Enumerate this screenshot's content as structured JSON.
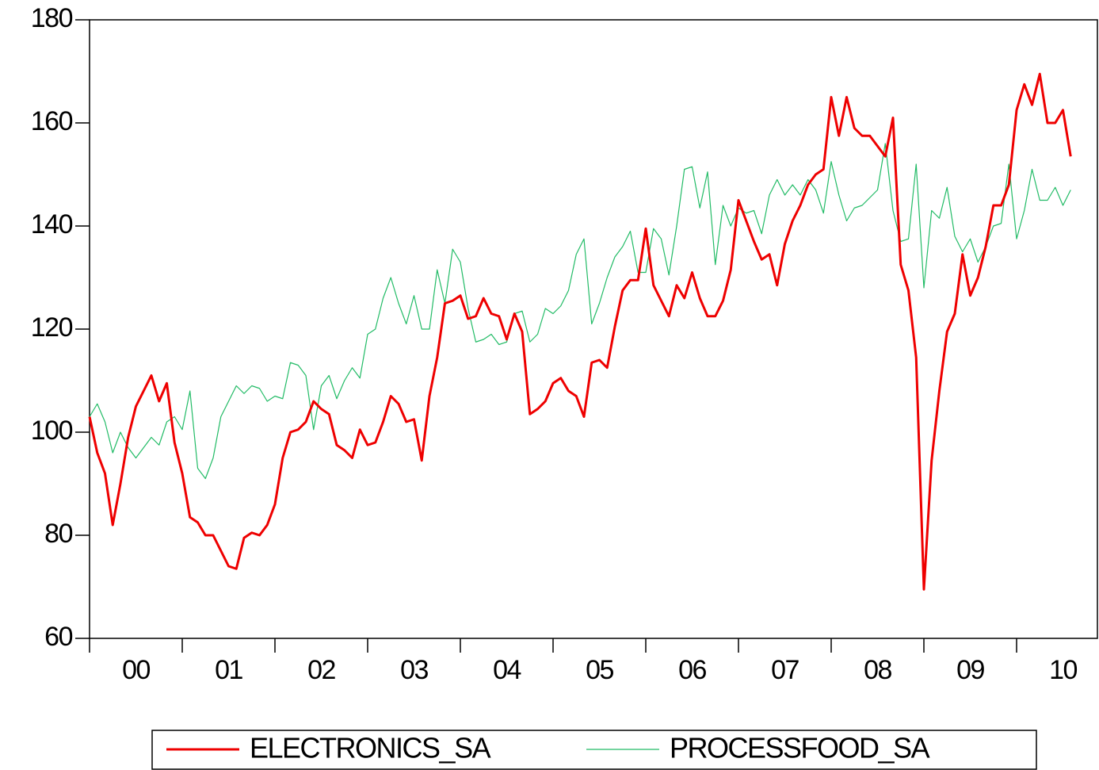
{
  "chart_data": {
    "type": "line",
    "categories": [
      null,
      null,
      null,
      null,
      null,
      null,
      "00",
      null,
      null,
      null,
      null,
      null,
      null,
      null,
      null,
      null,
      null,
      null,
      "01",
      null,
      null,
      null,
      null,
      null,
      null,
      null,
      null,
      null,
      null,
      null,
      "02",
      null,
      null,
      null,
      null,
      null,
      null,
      null,
      null,
      null,
      null,
      null,
      "03",
      null,
      null,
      null,
      null,
      null,
      null,
      null,
      null,
      null,
      null,
      null,
      "04",
      null,
      null,
      null,
      null,
      null,
      null,
      null,
      null,
      null,
      null,
      null,
      "05",
      null,
      null,
      null,
      null,
      null,
      null,
      null,
      null,
      null,
      null,
      null,
      "06",
      null,
      null,
      null,
      null,
      null,
      null,
      null,
      null,
      null,
      null,
      null,
      "07",
      null,
      null,
      null,
      null,
      null,
      null,
      null,
      null,
      null,
      null,
      null,
      "08",
      null,
      null,
      null,
      null,
      null,
      null,
      null,
      null,
      null,
      null,
      null,
      "09",
      null,
      null,
      null,
      null,
      null,
      null,
      null,
      null,
      null,
      null,
      null,
      "10",
      null
    ],
    "series": [
      {
        "name": "ELECTRONICS_SA",
        "color": "#ee0000",
        "values": [
          103,
          96,
          92,
          82,
          90,
          99,
          105,
          108,
          111,
          106,
          109.5,
          98,
          92,
          83.5,
          82.5,
          80,
          80,
          77,
          74,
          73.5,
          79.5,
          80.5,
          80,
          82,
          86,
          95,
          100,
          100.5,
          102,
          106,
          104.5,
          103.5,
          97.5,
          96.5,
          95,
          100.5,
          97.5,
          98,
          102,
          107,
          105.5,
          102,
          102.5,
          94.5,
          107,
          114.5,
          125,
          125.5,
          126.5,
          122,
          122.5,
          126,
          123,
          122.5,
          118,
          123,
          119.5,
          103.5,
          104.5,
          106,
          109.5,
          110.5,
          108,
          107,
          103,
          113.5,
          114,
          112.5,
          120.5,
          127.5,
          129.5,
          129.5,
          139.5,
          128.5,
          125.5,
          122.5,
          128.5,
          126,
          131,
          126,
          122.5,
          122.5,
          125.5,
          131.5,
          145,
          141,
          137,
          133.5,
          134.5,
          128.5,
          136.5,
          141,
          144,
          148,
          150,
          151,
          165,
          157.5,
          165,
          159,
          157.5,
          157.5,
          155.5,
          153.5,
          161,
          132.5,
          127.5,
          114.5,
          69.5,
          94.5,
          108,
          119.5,
          123,
          134.5,
          126.5,
          130,
          136,
          144,
          144,
          148,
          162.5,
          167.5,
          163.5,
          169.5,
          160,
          160,
          162.5,
          153.5
        ]
      },
      {
        "name": "PROCESSFOOD_SA",
        "color": "#22bb66",
        "values": [
          103,
          105.5,
          102,
          96,
          100,
          97,
          95,
          97,
          99,
          97.5,
          102,
          103,
          100.5,
          108,
          93,
          91,
          95,
          103,
          106,
          109,
          107.5,
          109,
          108.5,
          106,
          107,
          106.5,
          113.5,
          113,
          111,
          100.5,
          109,
          111,
          106.5,
          110,
          112.5,
          110.5,
          119,
          120,
          126,
          130,
          125,
          121,
          126.5,
          120,
          120,
          131.5,
          125,
          135.5,
          133,
          124,
          117.5,
          118,
          119,
          117,
          117.5,
          123,
          123.5,
          117.5,
          119,
          124,
          123,
          124.5,
          127.5,
          134.5,
          137.5,
          121,
          125,
          130,
          134,
          136,
          139,
          131,
          131,
          139.5,
          137.5,
          130.5,
          140,
          151,
          151.5,
          143.5,
          150.5,
          132.5,
          144,
          140,
          143.5,
          142.5,
          143,
          138.5,
          146,
          149,
          146,
          148,
          146,
          149,
          147,
          142.5,
          152.5,
          146,
          141,
          143.5,
          144,
          145.5,
          147,
          156,
          143,
          137,
          137.5,
          152,
          128,
          143,
          141.5,
          147.5,
          138,
          135,
          137.5,
          133,
          136,
          140,
          140.5,
          152,
          137.5,
          143,
          151,
          145,
          145,
          147.5,
          144,
          147
        ]
      }
    ],
    "ylim": [
      60,
      180
    ],
    "yticks": [
      60,
      80,
      100,
      120,
      140,
      160,
      180
    ]
  }
}
